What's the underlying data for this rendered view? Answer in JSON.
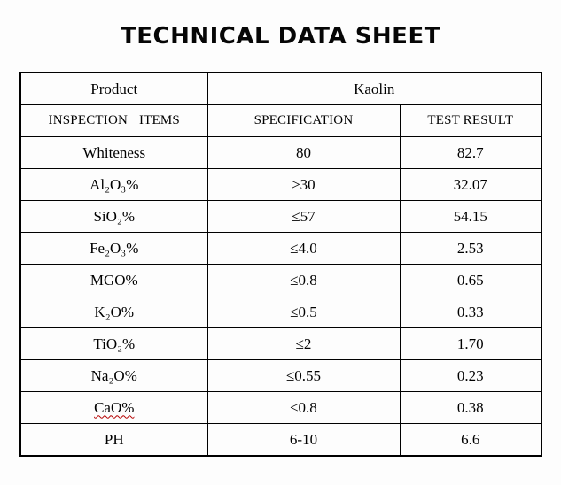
{
  "page": {
    "title": "TECHNICAL DATA SHEET"
  },
  "table": {
    "product_label": "Product",
    "product_value": "Kaolin",
    "headers": {
      "items": "INSPECTION ITEMS",
      "specification": "SPECIFICATION",
      "test_result": "TEST RESULT"
    },
    "rows": [
      {
        "item": "Whiteness",
        "specification": "80",
        "test_result": "82.7"
      },
      {
        "item": "Al₂O₃%",
        "specification": "≥30",
        "test_result": "32.07"
      },
      {
        "item": "SiO₂%",
        "specification": "≤57",
        "test_result": "54.15"
      },
      {
        "item": "Fe₂O₃%",
        "specification": "≤4.0",
        "test_result": "2.53"
      },
      {
        "item": "MGO%",
        "specification": "≤0.8",
        "test_result": "0.65"
      },
      {
        "item": "K₂O%",
        "specification": "≤0.5",
        "test_result": "0.33"
      },
      {
        "item": "TiO₂%",
        "specification": "≤2",
        "test_result": "1.70"
      },
      {
        "item": "Na₂O%",
        "specification": "≤0.55",
        "test_result": "0.23"
      },
      {
        "item": "CaO%",
        "specification": "≤0.8",
        "test_result": "0.38"
      },
      {
        "item": "PH",
        "specification": "6-10",
        "test_result": "6.6"
      }
    ],
    "accent_colors": {
      "border": "#000000",
      "spellcheck_underline": "#b40000"
    }
  }
}
